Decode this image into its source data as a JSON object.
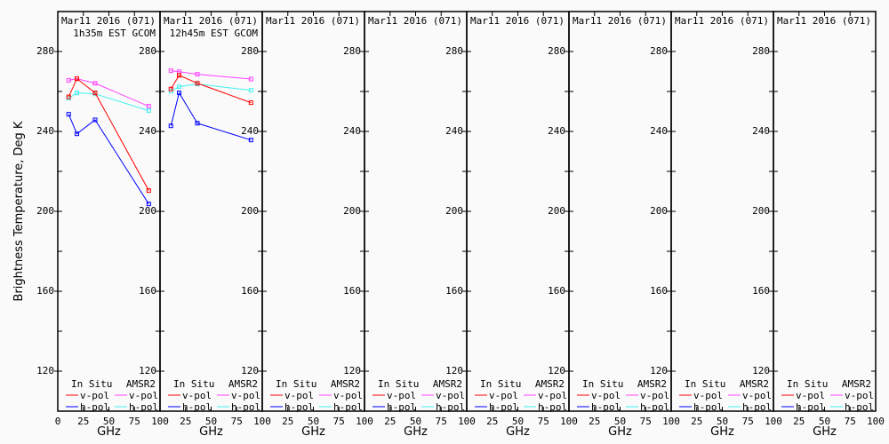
{
  "chart_data": {
    "type": "line",
    "ylabel": "Brightness Temperature, Deg K",
    "xlabel": "GHz",
    "ylim": [
      100,
      300
    ],
    "xlim": [
      0,
      100
    ],
    "yticks": [
      120,
      160,
      200,
      240,
      280
    ],
    "xticks": [
      0,
      25,
      50,
      75,
      100
    ],
    "legend": {
      "in_situ_title": "In Situ",
      "amsr2_title": "AMSR2",
      "entries": [
        {
          "group": "in_situ",
          "label": "v-pol",
          "color": "#ff0000"
        },
        {
          "group": "in_situ",
          "label": "h-pol",
          "color": "#0000ff"
        },
        {
          "group": "amsr2",
          "label": "v-pol",
          "color": "#ff40ff"
        },
        {
          "group": "amsr2",
          "label": "h-pol",
          "color": "#40f0f0"
        }
      ]
    },
    "panels": [
      {
        "title": "Mar11 2016 (071)",
        "subtitle": "1h35m EST GCOM",
        "x": [
          10.65,
          18.7,
          36.5,
          89
        ],
        "series": [
          {
            "color": "#ff40ff",
            "values": [
              265.6,
              266.4,
              264.1,
              252.6
            ]
          },
          {
            "color": "#40f0f0",
            "values": [
              256.6,
              259.3,
              258.8,
              250.4
            ]
          },
          {
            "color": "#ff0000",
            "values": [
              257.3,
              266.4,
              259.3,
              210.4
            ]
          },
          {
            "color": "#0000ff",
            "values": [
              248.6,
              238.8,
              245.8,
              203.7
            ]
          }
        ]
      },
      {
        "title": "Mar11 2016 (071)",
        "subtitle": "12h45m EST GCOM",
        "x": [
          10.65,
          18.7,
          36.5,
          89
        ],
        "series": [
          {
            "color": "#ff40ff",
            "values": [
              270.4,
              269.9,
              268.6,
              266.2
            ]
          },
          {
            "color": "#40f0f0",
            "values": [
              260.1,
              262.4,
              263.7,
              260.6
            ]
          },
          {
            "color": "#ff0000",
            "values": [
              261.2,
              268.1,
              264.1,
              254.4
            ]
          },
          {
            "color": "#0000ff",
            "values": [
              242.8,
              259.3,
              244.1,
              235.7
            ]
          }
        ]
      },
      {
        "title": "Mar11 2016 (071)",
        "subtitle": "",
        "x": [],
        "series": []
      },
      {
        "title": "Mar11 2016 (071)",
        "subtitle": "",
        "x": [],
        "series": []
      },
      {
        "title": "Mar11 2016 (071)",
        "subtitle": "",
        "x": [],
        "series": []
      },
      {
        "title": "Mar11 2016 (071)",
        "subtitle": "",
        "x": [],
        "series": []
      },
      {
        "title": "Mar11 2016 (071)",
        "subtitle": "",
        "x": [],
        "series": []
      },
      {
        "title": "Mar11 2016 (071)",
        "subtitle": "",
        "x": [],
        "series": []
      }
    ]
  }
}
